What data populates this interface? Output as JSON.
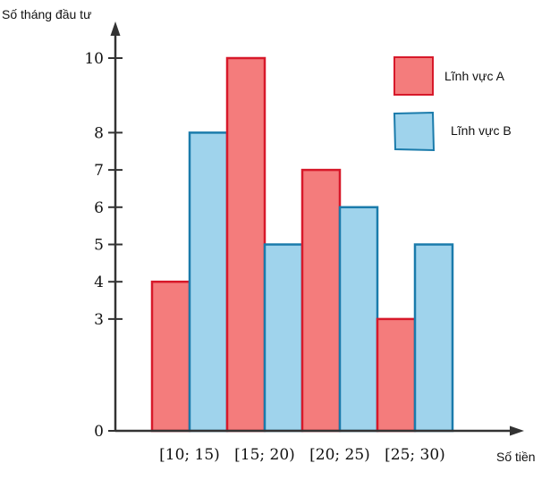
{
  "chart_data": {
    "type": "bar",
    "categories": [
      "[10; 15)",
      "[15; 20)",
      "[20; 25)",
      "[25; 30)"
    ],
    "series": [
      {
        "name": "Lĩnh vực A",
        "values": [
          4,
          10,
          7,
          3
        ],
        "color": "#f47c7c",
        "edge": "#d7192a"
      },
      {
        "name": "Lĩnh vực B",
        "values": [
          8,
          5,
          6,
          5
        ],
        "color": "#9fd3ec",
        "edge": "#1a7bab"
      }
    ],
    "y_ticks": [
      "0",
      "3",
      "4",
      "5",
      "6",
      "7",
      "8",
      "10"
    ],
    "ylim": [
      0,
      10
    ],
    "xlabel": "Số tiền",
    "ylabel": "Số tháng đầu tư",
    "grid": false,
    "legend": "top-right"
  }
}
